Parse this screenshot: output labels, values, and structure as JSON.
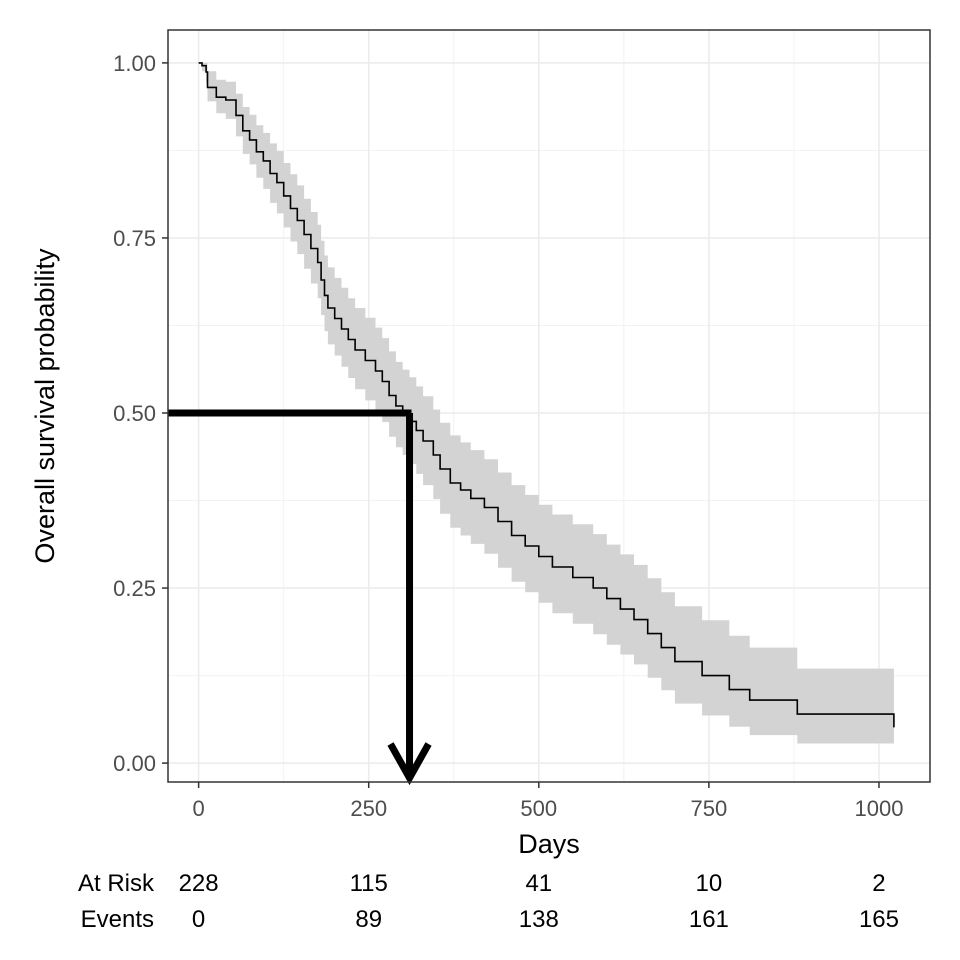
{
  "chart_data": {
    "type": "line",
    "title": "",
    "xlabel": "Days",
    "ylabel": "Overall survival probability",
    "xlim": [
      -45,
      1075
    ],
    "ylim": [
      -0.027,
      1.047
    ],
    "x_ticks": [
      0,
      250,
      500,
      750,
      1000
    ],
    "x_tick_labels": [
      "0",
      "250",
      "500",
      "750",
      "1000"
    ],
    "y_ticks": [
      0,
      0.25,
      0.5,
      0.75,
      1
    ],
    "y_tick_labels": [
      "0.00",
      "0.25",
      "0.50",
      "0.75",
      "1.00"
    ],
    "grid": true,
    "legend": "none",
    "series": [
      {
        "color": "#000000",
        "band_color": "#d3d3d3",
        "x": [
          0,
          5,
          11,
          13,
          26,
          40,
          55,
          65,
          75,
          85,
          95,
          105,
          115,
          125,
          135,
          145,
          155,
          165,
          175,
          180,
          185,
          190,
          200,
          210,
          220,
          230,
          245,
          260,
          270,
          280,
          290,
          300,
          310,
          320,
          330,
          345,
          355,
          370,
          385,
          400,
          420,
          440,
          460,
          480,
          500,
          520,
          550,
          580,
          600,
          620,
          640,
          660,
          680,
          700,
          740,
          780,
          810,
          880,
          1022
        ],
        "survival": [
          1.0,
          0.996,
          0.987,
          0.965,
          0.951,
          0.947,
          0.925,
          0.903,
          0.89,
          0.873,
          0.86,
          0.842,
          0.829,
          0.81,
          0.792,
          0.775,
          0.755,
          0.735,
          0.715,
          0.69,
          0.668,
          0.65,
          0.635,
          0.62,
          0.605,
          0.59,
          0.575,
          0.56,
          0.545,
          0.525,
          0.51,
          0.5,
          0.488,
          0.475,
          0.46,
          0.44,
          0.42,
          0.4,
          0.39,
          0.378,
          0.365,
          0.345,
          0.325,
          0.31,
          0.295,
          0.28,
          0.265,
          0.25,
          0.235,
          0.22,
          0.205,
          0.185,
          0.165,
          0.145,
          0.125,
          0.105,
          0.09,
          0.07,
          0.051
        ],
        "lower": [
          1.0,
          0.988,
          0.972,
          0.945,
          0.928,
          0.92,
          0.895,
          0.87,
          0.855,
          0.836,
          0.82,
          0.8,
          0.785,
          0.765,
          0.745,
          0.727,
          0.706,
          0.685,
          0.664,
          0.64,
          0.617,
          0.598,
          0.582,
          0.566,
          0.55,
          0.534,
          0.518,
          0.502,
          0.487,
          0.466,
          0.451,
          0.44,
          0.427,
          0.413,
          0.397,
          0.377,
          0.356,
          0.336,
          0.325,
          0.313,
          0.299,
          0.279,
          0.259,
          0.244,
          0.229,
          0.214,
          0.199,
          0.184,
          0.169,
          0.155,
          0.141,
          0.122,
          0.104,
          0.085,
          0.068,
          0.052,
          0.04,
          0.028,
          0.02
        ],
        "upper": [
          1.0,
          1.0,
          1.0,
          0.988,
          0.976,
          0.973,
          0.956,
          0.937,
          0.926,
          0.911,
          0.9,
          0.885,
          0.874,
          0.857,
          0.841,
          0.825,
          0.806,
          0.787,
          0.769,
          0.746,
          0.725,
          0.708,
          0.693,
          0.679,
          0.664,
          0.65,
          0.636,
          0.622,
          0.607,
          0.588,
          0.573,
          0.562,
          0.551,
          0.538,
          0.524,
          0.505,
          0.486,
          0.468,
          0.458,
          0.447,
          0.434,
          0.415,
          0.397,
          0.383,
          0.369,
          0.355,
          0.341,
          0.327,
          0.312,
          0.298,
          0.283,
          0.264,
          0.244,
          0.224,
          0.204,
          0.182,
          0.165,
          0.135,
          0.12
        ]
      }
    ],
    "annotations": {
      "median_survival_days": 310,
      "median_probability": 0.5
    },
    "risk_table": {
      "times": [
        0,
        250,
        500,
        750,
        1000
      ],
      "rows": [
        {
          "label": "At Risk",
          "values": [
            "228",
            "115",
            "41",
            "10",
            "2"
          ]
        },
        {
          "label": "Events",
          "values": [
            "0",
            "89",
            "138",
            "161",
            "165"
          ]
        }
      ]
    }
  }
}
